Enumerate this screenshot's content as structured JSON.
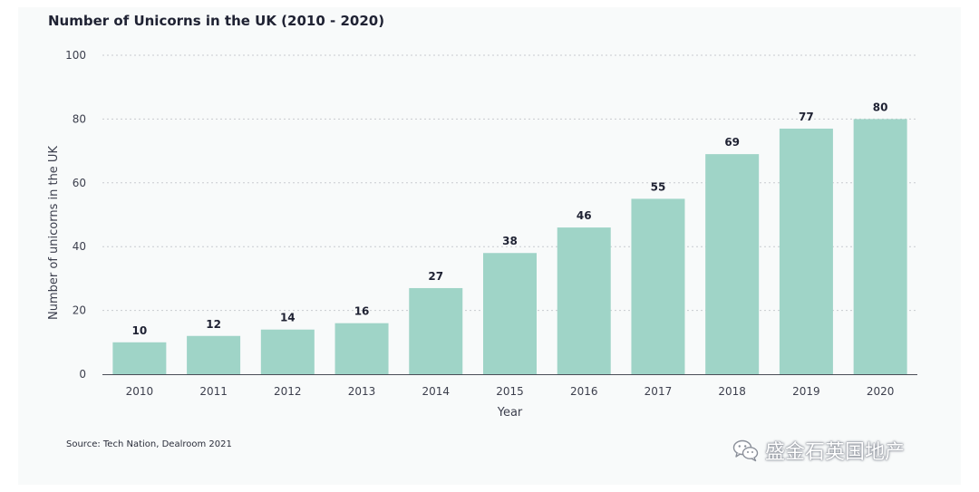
{
  "chart_data": {
    "type": "bar",
    "title": "Number of Unicorns in the UK (2010 - 2020)",
    "xlabel": "Year",
    "ylabel": "Number of unicorns in the UK",
    "categories": [
      "2010",
      "2011",
      "2012",
      "2013",
      "2014",
      "2015",
      "2016",
      "2017",
      "2018",
      "2019",
      "2020"
    ],
    "values": [
      10,
      12,
      14,
      16,
      27,
      38,
      46,
      55,
      69,
      77,
      80
    ],
    "ylim": [
      0,
      100
    ],
    "yticks": [
      0,
      20,
      40,
      60,
      80,
      100
    ],
    "grid": true,
    "data_labels": true,
    "bar_color": "#9fd4c7"
  },
  "source": "Source: Tech Nation, Dealroom 2021",
  "watermark": {
    "icon": "wechat-icon",
    "text": "盛金石英国地产"
  }
}
